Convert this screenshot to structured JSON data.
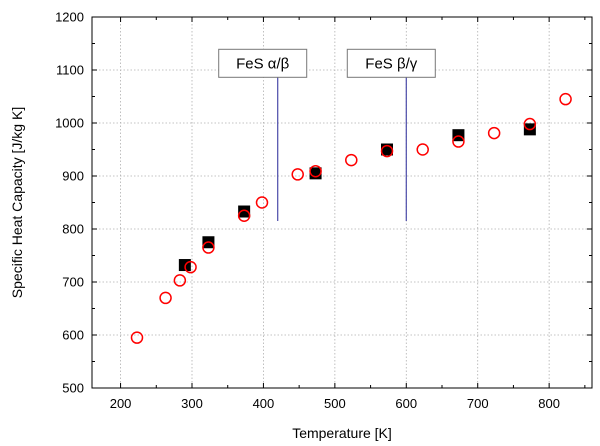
{
  "chart_data": {
    "type": "scatter",
    "title": "",
    "xlabel": "Temperature  [K]",
    "ylabel": "Specific Heat Capacity  [J/kg K]",
    "xlim": [
      160,
      860
    ],
    "ylim": [
      500,
      1200
    ],
    "x_ticks": [
      200,
      300,
      400,
      500,
      600,
      700,
      800
    ],
    "y_ticks": [
      500,
      600,
      700,
      800,
      900,
      1000,
      1100,
      1200
    ],
    "grid": true,
    "legend": "none",
    "series": [
      {
        "marker": "filled-square",
        "color": "#000000",
        "points": [
          {
            "x": 290,
            "y": 732
          },
          {
            "x": 323,
            "y": 775
          },
          {
            "x": 373,
            "y": 833
          },
          {
            "x": 473,
            "y": 905
          },
          {
            "x": 573,
            "y": 950
          },
          {
            "x": 673,
            "y": 977
          },
          {
            "x": 773,
            "y": 988
          }
        ]
      },
      {
        "marker": "open-circle",
        "color": "#ff0000",
        "points": [
          {
            "x": 223,
            "y": 595
          },
          {
            "x": 263,
            "y": 670
          },
          {
            "x": 283,
            "y": 703
          },
          {
            "x": 298,
            "y": 728
          },
          {
            "x": 323,
            "y": 765
          },
          {
            "x": 373,
            "y": 825
          },
          {
            "x": 398,
            "y": 850
          },
          {
            "x": 448,
            "y": 903
          },
          {
            "x": 473,
            "y": 909
          },
          {
            "x": 523,
            "y": 930
          },
          {
            "x": 573,
            "y": 947
          },
          {
            "x": 623,
            "y": 950
          },
          {
            "x": 673,
            "y": 965
          },
          {
            "x": 723,
            "y": 981
          },
          {
            "x": 773,
            "y": 998
          },
          {
            "x": 823,
            "y": 1045
          }
        ]
      }
    ],
    "annotations": [
      {
        "label": "FeS α/β",
        "line_x": 420,
        "line_y_from": 815,
        "line_y_to": 1090,
        "color": "#4a4aa8"
      },
      {
        "label": "FeS β/γ",
        "line_x": 600,
        "line_y_from": 815,
        "line_y_to": 1090,
        "color": "#4a4aa8"
      }
    ]
  }
}
